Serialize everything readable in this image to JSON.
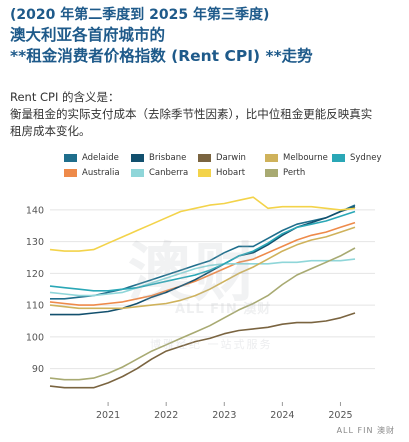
{
  "title": {
    "line1": "(2020 年第二季度到 2025 年第三季度)",
    "line2": "澳大利亚各首府城市的",
    "line3": "**租金消费者价格指数 (Rent CPI) **走势"
  },
  "description": {
    "line1": "Rent CPI 的含义是：",
    "line2": "衡量租金的实际支付成本（去除季节性因素），比中位租金更能反映真实",
    "line3": "租房成本变化。"
  },
  "watermark": {
    "big": "澳财",
    "sub": "ALL FIN 澳财",
    "line": "博雅经纪 一站式服务"
  },
  "brand": "ALL FIN 澳财",
  "chart_data": {
    "type": "line",
    "x_labels": [
      "2021",
      "2022",
      "2023",
      "2024",
      "2025"
    ],
    "x": [
      "2020Q2",
      "2020Q3",
      "2020Q4",
      "2021Q1",
      "2021Q2",
      "2021Q3",
      "2021Q4",
      "2022Q1",
      "2022Q2",
      "2022Q3",
      "2022Q4",
      "2023Q1",
      "2023Q2",
      "2023Q3",
      "2023Q4",
      "2024Q1",
      "2024Q2",
      "2024Q3",
      "2024Q4",
      "2025Q1",
      "2025Q2",
      "2025Q3"
    ],
    "ylim": [
      82,
      145
    ],
    "yticks": [
      90,
      100,
      110,
      120,
      130,
      140
    ],
    "grid": true,
    "legend_position": "top",
    "series": [
      {
        "name": "Adelaide",
        "color": "#1f6e8c",
        "values": [
          112.0,
          112.0,
          112.5,
          113.0,
          114.0,
          115.0,
          116.5,
          118.0,
          119.5,
          121.0,
          122.5,
          124.0,
          126.5,
          128.5,
          128.5,
          131.0,
          133.5,
          135.5,
          136.5,
          137.5,
          139.5,
          141.5
        ]
      },
      {
        "name": "Australia",
        "color": "#ee8a4a",
        "values": [
          111.0,
          110.5,
          110.0,
          110.0,
          110.5,
          111.0,
          112.0,
          113.0,
          114.5,
          116.0,
          117.5,
          119.5,
          121.5,
          123.5,
          124.5,
          126.5,
          128.5,
          130.5,
          132.0,
          133.0,
          134.5,
          136.0
        ]
      },
      {
        "name": "Brisbane",
        "color": "#12506e",
        "values": [
          107.0,
          107.0,
          107.0,
          107.5,
          108.0,
          109.0,
          110.5,
          112.5,
          114.0,
          116.0,
          118.0,
          120.5,
          123.0,
          125.5,
          126.5,
          129.0,
          132.0,
          134.5,
          136.0,
          137.5,
          139.5,
          141.0
        ]
      },
      {
        "name": "Canberra",
        "color": "#8fd6d9",
        "values": [
          114.0,
          113.5,
          113.0,
          113.0,
          113.5,
          114.0,
          115.5,
          117.0,
          118.5,
          120.0,
          121.5,
          122.5,
          123.0,
          123.0,
          123.0,
          123.0,
          123.5,
          123.5,
          124.0,
          124.0,
          124.0,
          124.5
        ]
      },
      {
        "name": "Darwin",
        "color": "#7a6440",
        "values": [
          84.5,
          84.0,
          84.0,
          84.0,
          85.5,
          87.5,
          90.0,
          93.0,
          95.5,
          97.0,
          98.5,
          99.5,
          101.0,
          102.0,
          102.5,
          103.0,
          104.0,
          104.5,
          104.5,
          105.0,
          106.0,
          107.5
        ]
      },
      {
        "name": "Hobart",
        "color": "#f3d34a",
        "values": [
          127.5,
          127.0,
          127.0,
          127.5,
          129.5,
          131.5,
          133.5,
          135.5,
          137.5,
          139.5,
          140.5,
          141.5,
          142.0,
          143.0,
          144.0,
          140.5,
          141.0,
          141.0,
          141.0,
          140.5,
          140.0,
          140.5
        ]
      },
      {
        "name": "Melbourne",
        "color": "#cfb25b",
        "values": [
          110.0,
          109.5,
          109.0,
          109.0,
          109.0,
          109.0,
          109.5,
          110.0,
          110.5,
          111.5,
          113.0,
          115.0,
          117.5,
          120.0,
          122.0,
          124.5,
          127.0,
          129.0,
          130.5,
          131.5,
          133.0,
          134.5
        ]
      },
      {
        "name": "Perth",
        "color": "#a8aa72",
        "values": [
          87.0,
          86.5,
          86.5,
          87.0,
          88.5,
          90.5,
          93.0,
          95.5,
          97.5,
          99.5,
          101.5,
          103.5,
          106.0,
          108.5,
          110.5,
          113.0,
          116.5,
          119.5,
          121.5,
          123.5,
          125.5,
          128.0
        ]
      },
      {
        "name": "Sydney",
        "color": "#2aa7b6",
        "values": [
          116.0,
          115.5,
          115.0,
          114.5,
          114.5,
          115.0,
          115.5,
          116.5,
          117.5,
          118.5,
          119.5,
          121.0,
          123.0,
          125.5,
          127.0,
          129.5,
          132.5,
          134.5,
          135.5,
          136.5,
          138.0,
          139.5
        ]
      }
    ]
  }
}
